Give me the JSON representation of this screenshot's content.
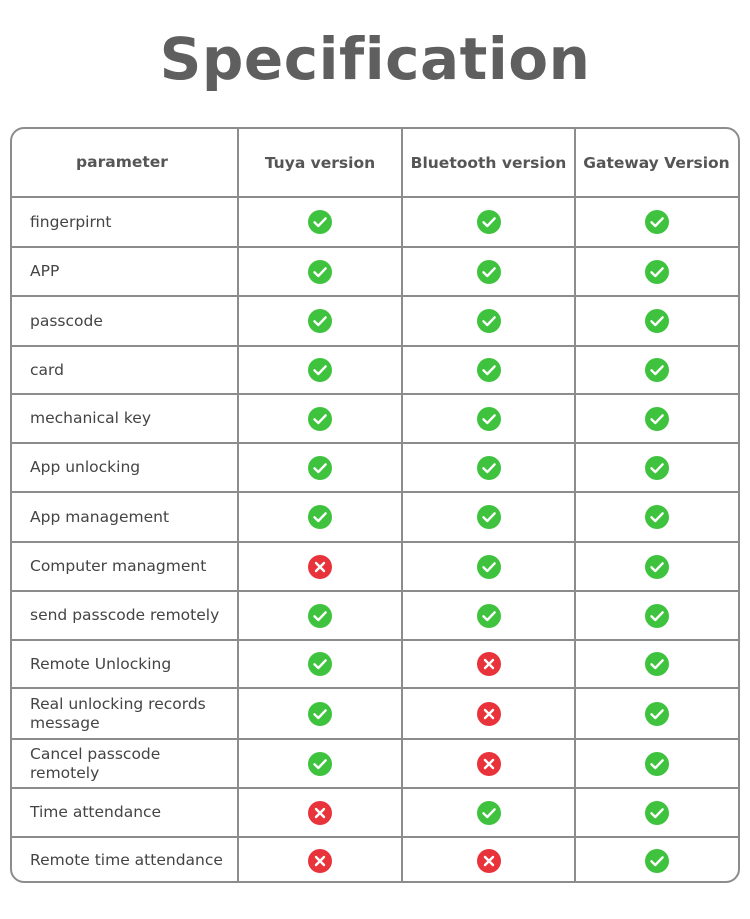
{
  "title": "Specification",
  "headers": [
    "parameter",
    "Tuya version",
    "Bluetooth version",
    "Gateway Version"
  ],
  "rows": [
    {
      "label": "fingerpirnt",
      "values": [
        "check-icon",
        "check-icon",
        "check-icon"
      ]
    },
    {
      "label": "APP",
      "values": [
        "check-icon",
        "check-icon",
        "check-icon"
      ]
    },
    {
      "label": "passcode",
      "values": [
        "check-icon",
        "check-icon",
        "check-icon"
      ]
    },
    {
      "label": "card",
      "values": [
        "check-icon",
        "check-icon",
        "check-icon"
      ]
    },
    {
      "label": "mechanical key",
      "values": [
        "check-icon",
        "check-icon",
        "check-icon"
      ]
    },
    {
      "label": "App unlocking",
      "values": [
        "check-icon",
        "check-icon",
        "check-icon"
      ]
    },
    {
      "label": "App management",
      "values": [
        "check-icon",
        "check-icon",
        "check-icon"
      ]
    },
    {
      "label": "Computer managment",
      "values": [
        "cross-icon",
        "check-icon",
        "check-icon"
      ]
    },
    {
      "label": "send passcode remotely",
      "values": [
        "check-icon",
        "check-icon",
        "check-icon"
      ]
    },
    {
      "label": "Remote Unlocking",
      "values": [
        "check-icon",
        "cross-icon",
        "check-icon"
      ]
    },
    {
      "label": "Real unlocking records message",
      "values": [
        "check-icon",
        "cross-icon",
        "check-icon"
      ]
    },
    {
      "label": "Cancel passcode remotely",
      "values": [
        "check-icon",
        "cross-icon",
        "check-icon"
      ]
    },
    {
      "label": "Time attendance",
      "values": [
        "cross-icon",
        "check-icon",
        "check-icon"
      ]
    },
    {
      "label": "Remote time attendance",
      "values": [
        "cross-icon",
        "cross-icon",
        "check-icon"
      ]
    }
  ],
  "colors": {
    "check": "#3fc33f",
    "cross": "#e8333b",
    "border": "#8c8c8c",
    "title": "#5f5f5f"
  }
}
